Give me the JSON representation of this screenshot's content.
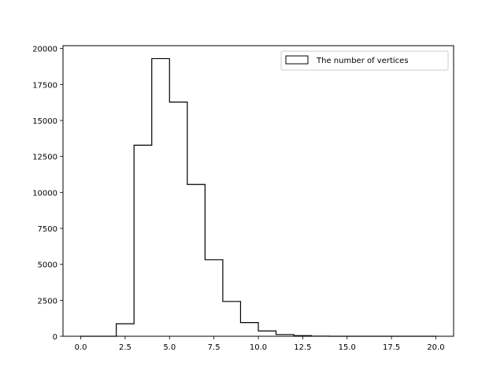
{
  "chart_data": {
    "type": "bar",
    "histtype": "step",
    "bin_edges": [
      0,
      1,
      2,
      3,
      4,
      5,
      6,
      7,
      8,
      9,
      10,
      11,
      12,
      13,
      14,
      15,
      16,
      17,
      18,
      19,
      20
    ],
    "values": [
      0,
      0,
      870,
      13280,
      19300,
      16280,
      10550,
      5320,
      2420,
      950,
      370,
      120,
      40,
      10,
      0,
      0,
      0,
      0,
      0,
      0
    ],
    "series": [
      {
        "name": "The number of vertices",
        "color": "#000000"
      }
    ],
    "xlim": [
      -1,
      21
    ],
    "ylim": [
      0,
      20200
    ],
    "xticks": [
      0,
      2.5,
      5,
      7.5,
      10,
      12.5,
      15,
      17.5,
      20
    ],
    "xtick_labels": [
      "0.0",
      "2.5",
      "5.0",
      "7.5",
      "10.0",
      "12.5",
      "15.0",
      "17.5",
      "20.0"
    ],
    "yticks": [
      0,
      2500,
      5000,
      7500,
      10000,
      12500,
      15000,
      17500,
      20000
    ],
    "ytick_labels": [
      "0",
      "2500",
      "5000",
      "7500",
      "10000",
      "12500",
      "15000",
      "17500",
      "20000"
    ],
    "title": "",
    "xlabel": "",
    "ylabel": "",
    "grid": false,
    "legend_position": "top-right"
  }
}
